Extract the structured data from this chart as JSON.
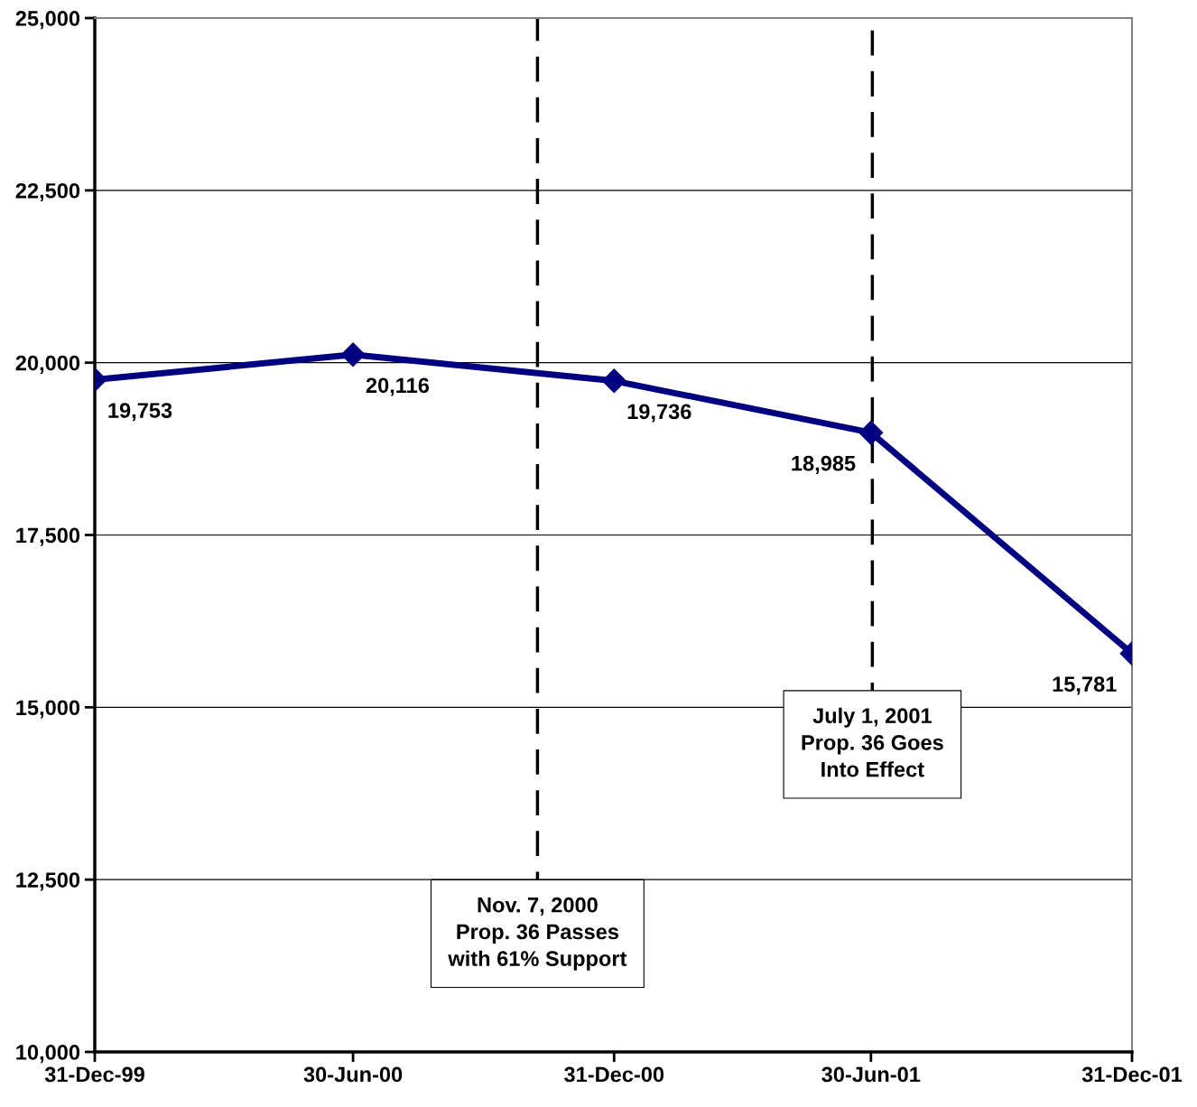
{
  "chart_data": {
    "type": "line",
    "x": [
      "1999-12-31",
      "2000-06-30",
      "2000-12-31",
      "2001-06-30",
      "2001-12-31"
    ],
    "series": [
      {
        "color": "#000080",
        "values": [
          19753,
          20116,
          19736,
          18985,
          15781
        ],
        "value_labels": [
          "19,753",
          "20,116",
          "19,736",
          "18,985",
          "15,781"
        ]
      }
    ],
    "marker": "diamond",
    "line_style": "solid",
    "grid": "y",
    "xlim": [
      "1999-12-31",
      "2001-12-31"
    ],
    "xticks": [
      {
        "value": "1999-12-31",
        "label": "31-Dec-99"
      },
      {
        "value": "2000-06-30",
        "label": "30-Jun-00"
      },
      {
        "value": "2000-12-31",
        "label": "31-Dec-00"
      },
      {
        "value": "2001-06-30",
        "label": "30-Jun-01"
      },
      {
        "value": "2001-12-31",
        "label": "31-Dec-01"
      }
    ],
    "ylim": [
      10000,
      25000
    ],
    "yticks": [
      {
        "value": 10000,
        "label": "10,000"
      },
      {
        "value": 12500,
        "label": "12,500"
      },
      {
        "value": 15000,
        "label": "15,000"
      },
      {
        "value": 17500,
        "label": "17,500"
      },
      {
        "value": 20000,
        "label": "20,000"
      },
      {
        "value": 22500,
        "label": "22,500"
      },
      {
        "value": 25000,
        "label": "25,000"
      }
    ],
    "ref_lines": [
      {
        "axis": "x",
        "value": "2000-11-07",
        "label": "Nov. 7, 2000\nProp. 36 Passes\nwith 61% Support",
        "color": "#000000",
        "line_style": "dashed"
      },
      {
        "axis": "x",
        "value": "2001-07-01",
        "label": "July 1, 2001\nProp. 36 Goes\nInto Effect",
        "color": "#000000",
        "line_style": "dashed"
      }
    ]
  }
}
